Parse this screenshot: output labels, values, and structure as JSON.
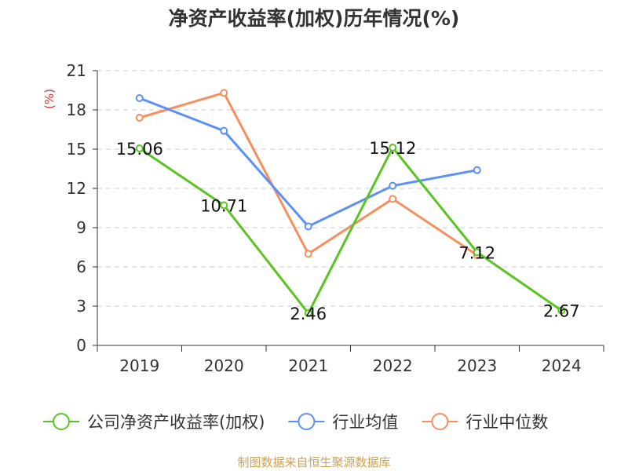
{
  "chart_data": {
    "type": "line",
    "title": "净资产收益率(加权)历年情况(%)",
    "ylabel": "(%)",
    "categories": [
      "2019",
      "2020",
      "2021",
      "2022",
      "2023",
      "2024"
    ],
    "ylim": [
      0,
      21
    ],
    "yticks": [
      "0",
      "3",
      "6",
      "9",
      "12",
      "15",
      "18",
      "21"
    ],
    "grid": true,
    "legend_position": "bottom",
    "series": [
      {
        "name": "公司净资产收益率(加权)",
        "color": "#5ac420",
        "values": [
          15.06,
          10.71,
          2.46,
          15.12,
          7.12,
          2.67
        ],
        "labels": [
          "15.06",
          "10.71",
          "2.46",
          "15.12",
          "7.12",
          "2.67"
        ]
      },
      {
        "name": "行业均值",
        "color": "#5b8ff9",
        "values": [
          18.9,
          16.4,
          9.1,
          12.2,
          13.4,
          null
        ]
      },
      {
        "name": "行业中位数",
        "color": "#f68f5d",
        "values": [
          17.4,
          19.3,
          7.0,
          11.2,
          6.9,
          null
        ]
      }
    ]
  },
  "footer": "制图数据来自恒生聚源数据库"
}
